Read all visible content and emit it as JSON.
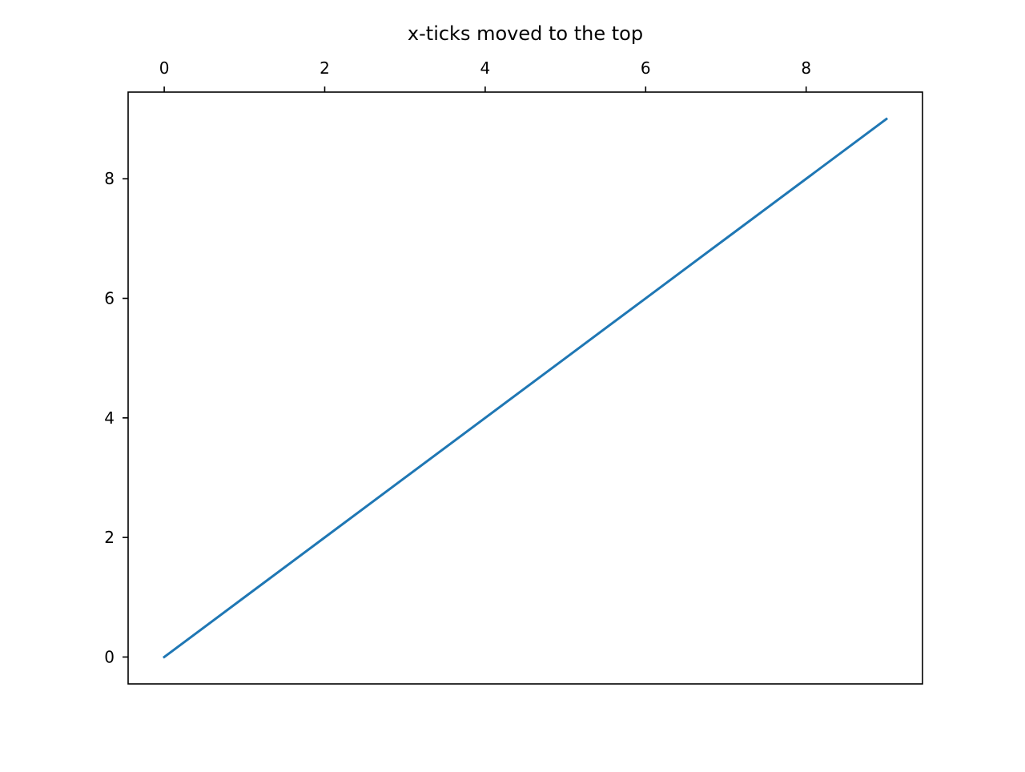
{
  "chart_data": {
    "type": "line",
    "title": "x-ticks moved to the top",
    "xlabel": "",
    "ylabel": "",
    "x_axis_position": "top",
    "xlim": [
      -0.45,
      9.45
    ],
    "ylim": [
      -0.45,
      9.45
    ],
    "xticks": [
      0,
      2,
      4,
      6,
      8
    ],
    "yticks": [
      0,
      2,
      4,
      6,
      8
    ],
    "grid": false,
    "series": [
      {
        "color": "#1f77b4",
        "x": [
          0,
          1,
          2,
          3,
          4,
          5,
          6,
          7,
          8,
          9
        ],
        "y": [
          0,
          1,
          2,
          3,
          4,
          5,
          6,
          7,
          8,
          9
        ]
      }
    ]
  }
}
